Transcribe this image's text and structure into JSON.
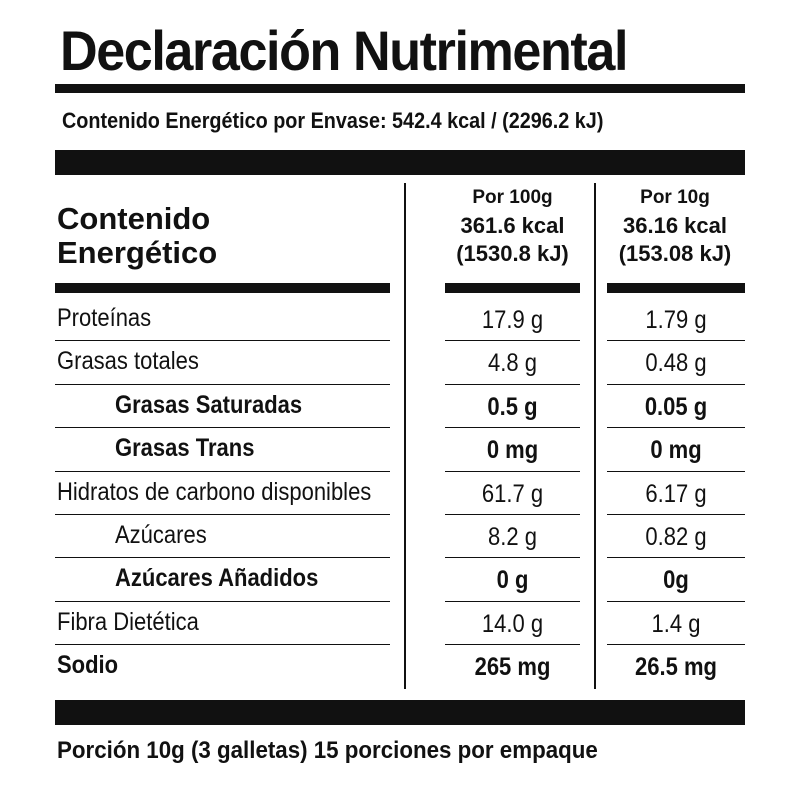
{
  "title": "Declaración Nutrimental",
  "energy_content": "Contenido Energético por Envase: 542.4 kcal / (2296.2 kJ)",
  "table": {
    "header": {
      "label": [
        "Contenido",
        "Energético"
      ],
      "columns": [
        {
          "serving": "Por 100g",
          "kcal": "361.6 kcal",
          "kj": "(1530.8 kJ)"
        },
        {
          "serving": "Por 10g",
          "kcal": "36.16 kcal",
          "kj": "(153.08 kJ)"
        }
      ]
    },
    "rows": [
      [
        "Proteínas",
        "17.9 g",
        "1.79 g"
      ],
      [
        "Grasas totales",
        "4.8 g",
        "0.48 g"
      ],
      [
        "Grasas Saturadas",
        "0.5 g",
        "0.05 g"
      ],
      [
        "Grasas Trans",
        "0 mg",
        "0 mg"
      ],
      [
        "Hidratos de carbono disponibles",
        "61.7 g",
        "6.17 g"
      ],
      [
        "Azúcares",
        "8.2 g",
        "0.82 g"
      ],
      [
        "Azúcares Añadidos",
        "0 g",
        "0g"
      ],
      [
        "Fibra Dietética",
        "14.0 g",
        "1.4 g"
      ],
      [
        "Sodio",
        "265 mg",
        "26.5 mg"
      ]
    ]
  },
  "footer": "Porción 10g (3 galletas) 15 porciones por empaque"
}
